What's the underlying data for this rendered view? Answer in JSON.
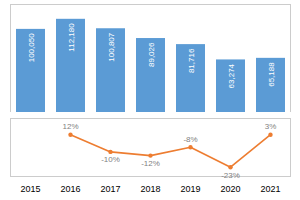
{
  "chart_data": [
    {
      "type": "bar",
      "categories": [
        "2015",
        "2016",
        "2017",
        "2018",
        "2019",
        "2020",
        "2021"
      ],
      "values": [
        100050,
        112180,
        100807,
        89026,
        81716,
        63274,
        65188
      ],
      "value_labels": [
        "100,050",
        "112,180",
        "100,807",
        "89,026",
        "81,716",
        "63,274",
        "65,188"
      ],
      "data_labels": true,
      "color": "#5B9BD5",
      "ylim": [
        0,
        130000
      ],
      "tick_labels": false
    },
    {
      "type": "line",
      "categories": [
        "2015",
        "2016",
        "2017",
        "2018",
        "2019",
        "2020",
        "2021"
      ],
      "values": [
        null,
        0.75,
        0.38,
        0.3,
        0.48,
        0.05,
        0.75
      ],
      "color": "#ED7D31",
      "marker": "circle",
      "ylim": [
        -0.15,
        1.1
      ],
      "tick_labels": "x",
      "annotations": [
        {
          "x": "2016",
          "text": "12%"
        },
        {
          "x": "2017",
          "text": "-10%"
        },
        {
          "x": "2018",
          "text": "-12%"
        },
        {
          "x": "2019",
          "text": "-8%"
        },
        {
          "x": "2020",
          "text": "-23%"
        },
        {
          "x": "2021",
          "text": "3%"
        }
      ]
    }
  ]
}
